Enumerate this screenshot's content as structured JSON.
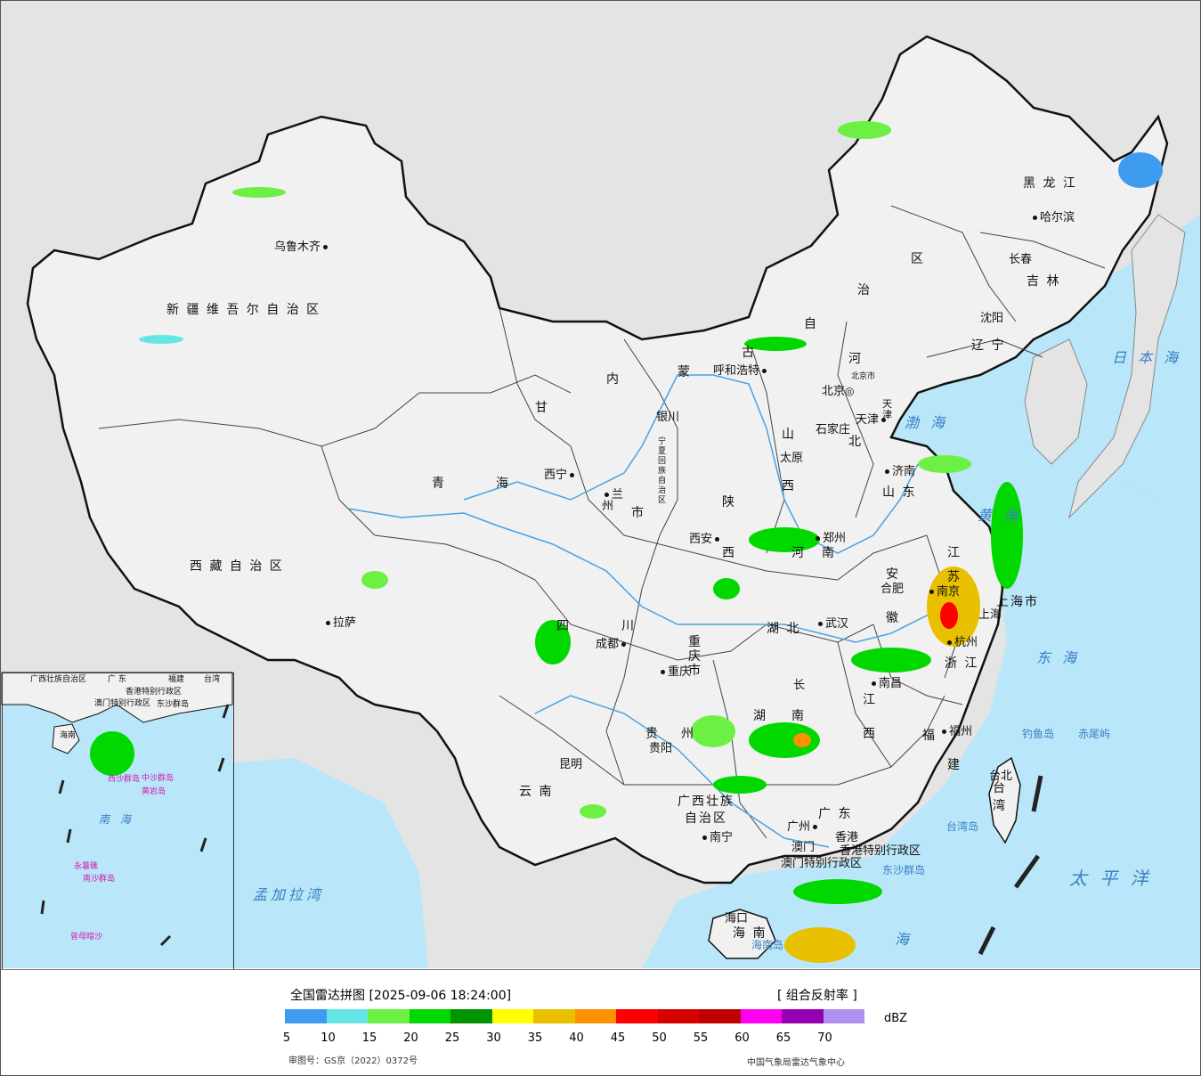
{
  "map": {
    "colors": {
      "land": "#f1f1f1",
      "sea": "#b9e6f8",
      "foreign_land": "#e4e4e4",
      "border": "#111111",
      "river": "#4aa3e0"
    },
    "provinces": [
      {
        "key": "xinjiang",
        "label": "新 疆 维 吾 尔 自 治 区"
      },
      {
        "key": "xizang",
        "label": "西 藏 自 治 区"
      },
      {
        "key": "qinghai_1",
        "label": "青"
      },
      {
        "key": "qinghai_2",
        "label": "海"
      },
      {
        "key": "gansu",
        "label": "甘"
      },
      {
        "key": "neimenggu_1",
        "label": "内"
      },
      {
        "key": "neimenggu_2",
        "label": "蒙"
      },
      {
        "key": "neimenggu_3",
        "label": "古"
      },
      {
        "key": "neimenggu_4",
        "label": "自"
      },
      {
        "key": "neimenggu_5",
        "label": "治"
      },
      {
        "key": "neimenggu_6",
        "label": "区"
      },
      {
        "key": "heilongjiang",
        "label": "黑 龙 江"
      },
      {
        "key": "jilin",
        "label": "吉 林"
      },
      {
        "key": "liaoning",
        "label": "辽 宁"
      },
      {
        "key": "hebei_1",
        "label": "河"
      },
      {
        "key": "hebei_2",
        "label": "北"
      },
      {
        "key": "shanxi_1",
        "label": "山"
      },
      {
        "key": "shanxi_2",
        "label": "西"
      },
      {
        "key": "shandong",
        "label": "山 东"
      },
      {
        "key": "henan_1",
        "label": "河"
      },
      {
        "key": "henan_2",
        "label": "南"
      },
      {
        "key": "shaanxi_1",
        "label": "陕"
      },
      {
        "key": "shaanxi_2",
        "label": "西"
      },
      {
        "key": "ningxia",
        "label": "宁夏回族自治区"
      },
      {
        "key": "sichuan_1",
        "label": "四"
      },
      {
        "key": "sichuan_2",
        "label": "川"
      },
      {
        "key": "chongqing",
        "label": "重庆市"
      },
      {
        "key": "hubei",
        "label": "湖 北"
      },
      {
        "key": "anhui_1",
        "label": "安"
      },
      {
        "key": "anhui_2",
        "label": "徽"
      },
      {
        "key": "jiangsu_1",
        "label": "江"
      },
      {
        "key": "jiangsu_2",
        "label": "苏"
      },
      {
        "key": "shanghai",
        "label": "上海市"
      },
      {
        "key": "zhejiang",
        "label": "浙 江"
      },
      {
        "key": "hunan_1",
        "label": "湖"
      },
      {
        "key": "hunan_2",
        "label": "南"
      },
      {
        "key": "jiangxi_1",
        "label": "江"
      },
      {
        "key": "jiangxi_2",
        "label": "西"
      },
      {
        "key": "fujian_1",
        "label": "福"
      },
      {
        "key": "fujian_2",
        "label": "建"
      },
      {
        "key": "guizhou_1",
        "label": "贵"
      },
      {
        "key": "guizhou_2",
        "label": "州"
      },
      {
        "key": "yunnan",
        "label": "云 南"
      },
      {
        "key": "guangxi_1",
        "label": "广西壮族"
      },
      {
        "key": "guangxi_2",
        "label": "自治区"
      },
      {
        "key": "guangdong",
        "label": "广 东"
      },
      {
        "key": "hainan",
        "label": "海 南"
      },
      {
        "key": "taiwan",
        "label": "台 湾"
      },
      {
        "key": "tianjin",
        "label": "天津"
      },
      {
        "key": "gansu_city",
        "label": "市"
      },
      {
        "key": "hk_sar",
        "label": "香港特别行政区"
      },
      {
        "key": "macau_sar",
        "label": "澳门特别行政区"
      }
    ],
    "cities": [
      {
        "key": "urumqi",
        "label": "乌鲁木齐"
      },
      {
        "key": "lhasa",
        "label": "拉萨"
      },
      {
        "key": "xining",
        "label": "西宁"
      },
      {
        "key": "lanzhou",
        "label": "兰州"
      },
      {
        "key": "yinchuan",
        "label": "银川"
      },
      {
        "key": "hohhot",
        "label": "呼和浩特"
      },
      {
        "key": "beijing",
        "label": "北京"
      },
      {
        "key": "beijing_city",
        "label": "北京市"
      },
      {
        "key": "tianjin_city",
        "label": "天津"
      },
      {
        "key": "shijiazhuang",
        "label": "石家庄"
      },
      {
        "key": "taiyuan",
        "label": "太原"
      },
      {
        "key": "jinan",
        "label": "济南"
      },
      {
        "key": "zhengzhou",
        "label": "郑州"
      },
      {
        "key": "xian",
        "label": "西安"
      },
      {
        "key": "harbin",
        "label": "哈尔滨"
      },
      {
        "key": "changchun",
        "label": "长春"
      },
      {
        "key": "shenyang",
        "label": "沈阳"
      },
      {
        "key": "hefei",
        "label": "合肥"
      },
      {
        "key": "nanjing",
        "label": "南京"
      },
      {
        "key": "shanghai_city",
        "label": "上海"
      },
      {
        "key": "hangzhou",
        "label": "杭州"
      },
      {
        "key": "wuhan",
        "label": "武汉"
      },
      {
        "key": "chengdu",
        "label": "成都"
      },
      {
        "key": "chongqing_city",
        "label": "重庆"
      },
      {
        "key": "changsha",
        "label": "长"
      },
      {
        "key": "nanchang",
        "label": "南昌"
      },
      {
        "key": "fuzhou",
        "label": "福州"
      },
      {
        "key": "guiyang",
        "label": "贵阳"
      },
      {
        "key": "kunming",
        "label": "昆明"
      },
      {
        "key": "nanning",
        "label": "南宁"
      },
      {
        "key": "guangzhou",
        "label": "广州"
      },
      {
        "key": "macau",
        "label": "澳门"
      },
      {
        "key": "hongkong",
        "label": "香港"
      },
      {
        "key": "haikou",
        "label": "海口"
      },
      {
        "key": "taipei",
        "label": "台北"
      }
    ],
    "seas": [
      {
        "key": "japan_sea",
        "label": "日 本 海"
      },
      {
        "key": "bohai",
        "label": "渤 海"
      },
      {
        "key": "yellow_sea",
        "label": "黄 海"
      },
      {
        "key": "east_sea",
        "label": "东 海"
      },
      {
        "key": "pacific",
        "label": "太 平 洋"
      },
      {
        "key": "south_sea",
        "label": "海"
      },
      {
        "key": "bengal",
        "label": "孟加拉湾"
      }
    ],
    "islands": [
      {
        "key": "diaoyu",
        "label": "钓鱼岛"
      },
      {
        "key": "chiwei",
        "label": "赤尾屿"
      },
      {
        "key": "taiwan_island",
        "label": "台湾岛"
      },
      {
        "key": "dongsha",
        "label": "东沙群岛"
      },
      {
        "key": "hainan_island",
        "label": "海南岛"
      }
    ],
    "inset": {
      "labels": [
        {
          "key": "guangxi",
          "label": "广西壮族自治区"
        },
        {
          "key": "guangdong",
          "label": "广 东"
        },
        {
          "key": "fujian",
          "label": "福建"
        },
        {
          "key": "taiwan",
          "label": "台湾"
        },
        {
          "key": "hk",
          "label": "香港特别行政区"
        },
        {
          "key": "macau",
          "label": "澳门特别行政区"
        },
        {
          "key": "dongsha",
          "label": "东沙群岛"
        },
        {
          "key": "hainan",
          "label": "海南"
        },
        {
          "key": "south_sea",
          "label": "南 海"
        }
      ],
      "pink_labels": [
        {
          "key": "xisha",
          "label": "西沙群岛"
        },
        {
          "key": "zhongsha",
          "label": "中沙群岛"
        },
        {
          "key": "huangyan",
          "label": "黄岩岛"
        },
        {
          "key": "nansha",
          "label": "南沙群岛"
        },
        {
          "key": "yongshu",
          "label": "永暑礁"
        },
        {
          "key": "zengmu",
          "label": "曾母暗沙"
        }
      ]
    }
  },
  "legend": {
    "title": "全国雷达拼图 [2025-09-06 18:24:00]",
    "product": "[ 组合反射率 ]",
    "unit": "dBZ",
    "colors": [
      "#3d9cf0",
      "#64e6e6",
      "#6cf044",
      "#00d800",
      "#009400",
      "#ffff00",
      "#e8c000",
      "#ff9000",
      "#ff0000",
      "#d60000",
      "#c00000",
      "#ff00f0",
      "#9600b4",
      "#ad90f0"
    ],
    "ticks": [
      "5",
      "10",
      "15",
      "20",
      "25",
      "30",
      "35",
      "40",
      "45",
      "50",
      "55",
      "60",
      "65",
      "70"
    ],
    "approval": "审图号：GS京（2022）0372号",
    "agency": "中国气象局雷达气象中心"
  }
}
